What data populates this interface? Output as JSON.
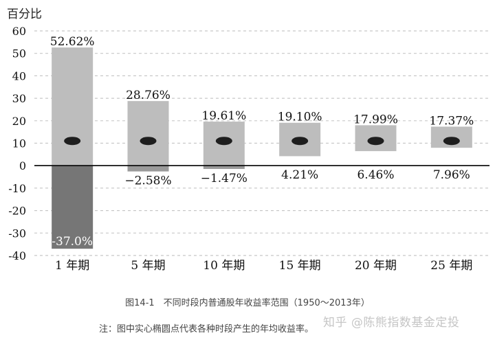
{
  "chart_data": {
    "type": "bar",
    "ylabel": "百分比",
    "ylim": [
      -40,
      60
    ],
    "yticks": [
      60,
      50,
      40,
      30,
      20,
      10,
      0,
      -10,
      -20,
      -30,
      -40
    ],
    "grid": true,
    "categories": [
      "1 年期",
      "5 年期",
      "10 年期",
      "15 年期",
      "20 年期",
      "25 年期"
    ],
    "series": [
      {
        "values": [
          52.62,
          28.76,
          19.61,
          19.1,
          17.99,
          17.37
        ]
      },
      {
        "values": [
          -37.0,
          -2.58,
          -1.47,
          4.21,
          6.46,
          7.96
        ]
      }
    ],
    "max_labels": [
      "52.62%",
      "28.76%",
      "19.61%",
      "19.10%",
      "17.99%",
      "17.37%"
    ],
    "min_labels": [
      "-37.0%",
      "−2.58%",
      "−1.47%",
      "4.21%",
      "6.46%",
      "7.96%"
    ],
    "avg_marker_value": 11,
    "colors": {
      "bar_positive": "#bdbdbd",
      "bar_negative": "#767676",
      "marker": "#1e1e1e",
      "grid": "#c8c8c8",
      "axis": "#000000"
    }
  },
  "caption": {
    "title": "图14-1　不同时段内普通股年收益率范围（1950～2013年）",
    "note": "注：图中实心椭圆点代表各种时段产生的年均收益率。"
  },
  "watermark": "知乎 @陈熊指数基金定投"
}
